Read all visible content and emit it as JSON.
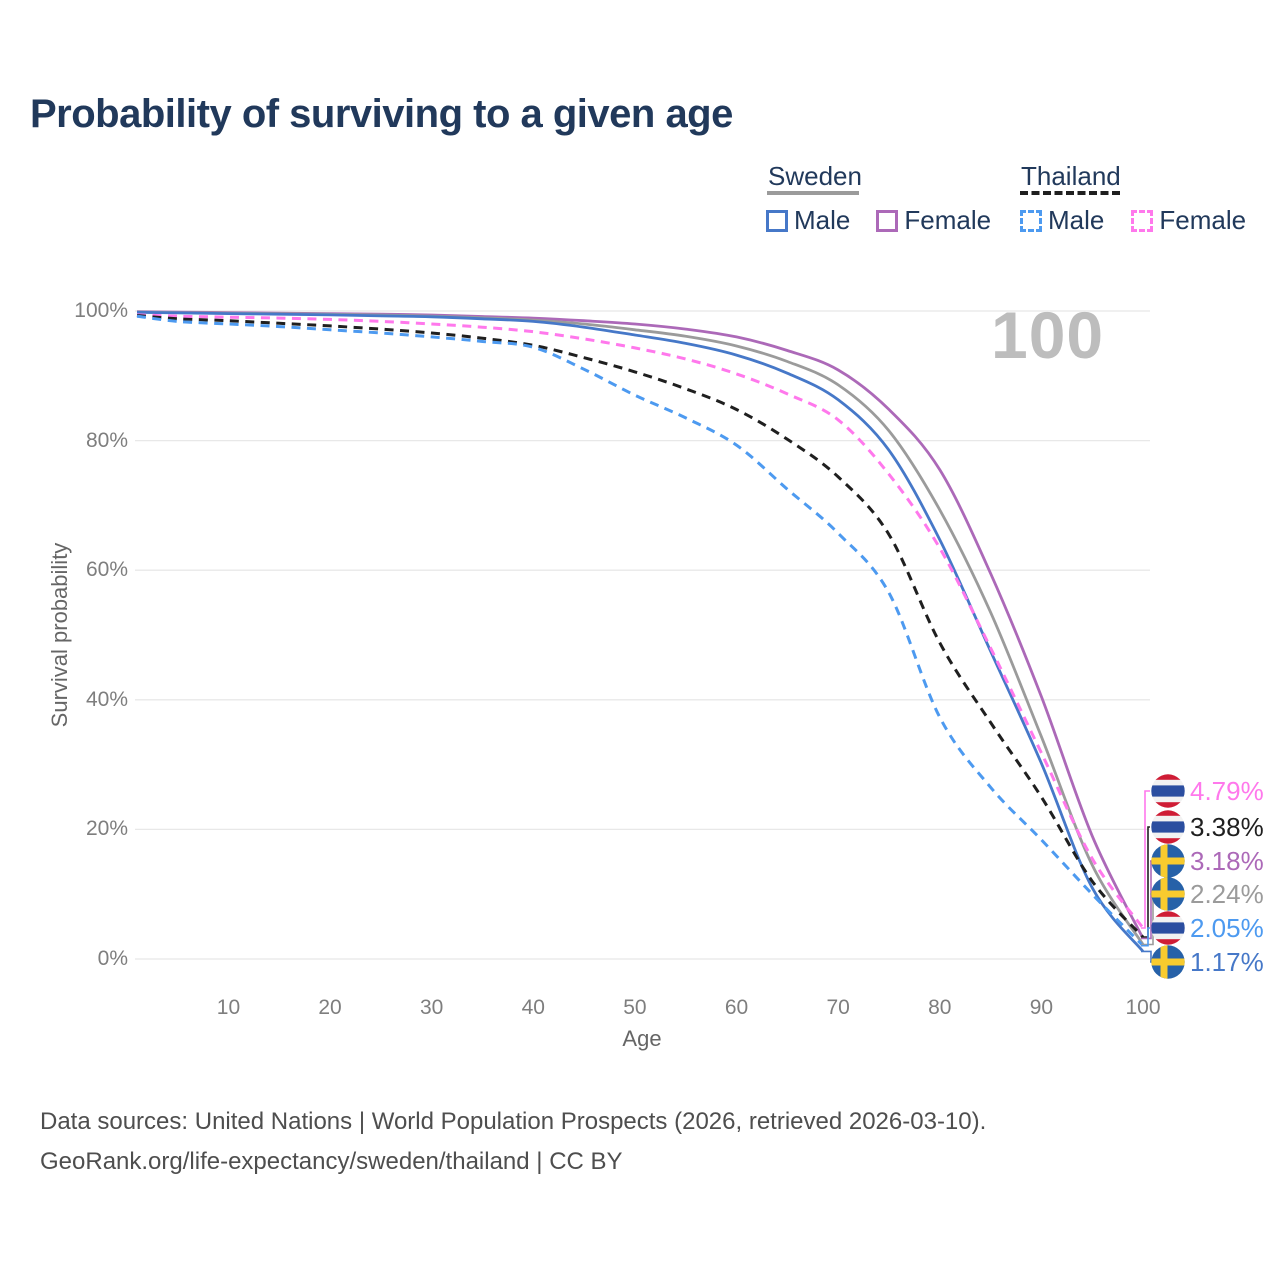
{
  "title": "Probability of surviving to a given age",
  "watermark": "100",
  "legend": {
    "groups": [
      {
        "country": "Sweden",
        "line_style": "solid",
        "underline_color": "#9B9B9B",
        "items": [
          {
            "label": "Male",
            "color": "#4678C8"
          },
          {
            "label": "Female",
            "color": "#AC69B8"
          }
        ]
      },
      {
        "country": "Thailand",
        "line_style": "dashed",
        "underline_color": "#1F1F1F",
        "items": [
          {
            "label": "Male",
            "color": "#4D9AF0"
          },
          {
            "label": "Female",
            "color": "#FF78EC"
          }
        ]
      }
    ]
  },
  "axes": {
    "y_label": "Survival probability",
    "x_label": "Age",
    "y_ticks": [
      "0%",
      "20%",
      "40%",
      "60%",
      "80%",
      "100%"
    ],
    "x_ticks": [
      "10",
      "20",
      "30",
      "40",
      "50",
      "60",
      "70",
      "80",
      "90",
      "100"
    ]
  },
  "chart_data": {
    "type": "line",
    "title": "Probability of surviving to a given age",
    "xlabel": "Age",
    "ylabel": "Survival probability",
    "xlim": [
      0,
      100
    ],
    "ylim": [
      0,
      100
    ],
    "grid": "horizontal",
    "legend_position": "top-right",
    "x": [
      1,
      5,
      10,
      15,
      20,
      25,
      30,
      35,
      40,
      45,
      50,
      55,
      60,
      65,
      70,
      75,
      80,
      85,
      90,
      95,
      100
    ],
    "series": [
      {
        "id": "sweden-female",
        "name": "Sweden Female",
        "color": "#AC69B8",
        "dashed": false,
        "values": [
          99.9,
          99.82,
          99.76,
          99.68,
          99.6,
          99.5,
          99.38,
          99.15,
          98.9,
          98.5,
          98.0,
          97.2,
          96.0,
          93.9,
          90.9,
          84.8,
          75.5,
          59.5,
          40.5,
          19.0,
          3.18
        ]
      },
      {
        "id": "sweden-both",
        "name": "Sweden (both sexes)",
        "color": "#9B9B9B",
        "dashed": false,
        "values": [
          99.85,
          99.75,
          99.68,
          99.58,
          99.5,
          99.38,
          99.2,
          98.95,
          98.6,
          98.0,
          97.1,
          96.1,
          94.6,
          92.2,
          88.6,
          81.5,
          69.3,
          53.5,
          34.3,
          14.5,
          2.24
        ]
      },
      {
        "id": "sweden-male",
        "name": "Sweden Male",
        "color": "#4678C8",
        "dashed": false,
        "values": [
          99.8,
          99.7,
          99.6,
          99.5,
          99.4,
          99.25,
          99.1,
          98.8,
          98.4,
          97.5,
          96.3,
          95.0,
          93.2,
          90.4,
          86.3,
          78.5,
          64.7,
          47.5,
          30.2,
          11.0,
          1.17
        ]
      },
      {
        "id": "thailand-female",
        "name": "Thailand Female",
        "color": "#FF78EC",
        "dashed": true,
        "values": [
          99.4,
          99.2,
          99.05,
          98.9,
          98.7,
          98.4,
          98.0,
          97.5,
          96.8,
          95.7,
          94.3,
          92.6,
          90.3,
          87.2,
          83.2,
          74.8,
          63.4,
          48.0,
          31.8,
          15.5,
          4.79
        ]
      },
      {
        "id": "thailand-both",
        "name": "Thailand (both sexes)",
        "color": "#1F1F1F",
        "dashed": true,
        "values": [
          99.3,
          98.8,
          98.5,
          98.1,
          97.7,
          97.2,
          96.6,
          95.8,
          94.7,
          92.8,
          90.6,
          88.0,
          84.8,
          80.2,
          74.4,
          65.5,
          48.8,
          36.5,
          25.0,
          12.0,
          3.38
        ]
      },
      {
        "id": "thailand-male",
        "name": "Thailand Male",
        "color": "#4D9AF0",
        "dashed": true,
        "values": [
          99.2,
          98.4,
          98.0,
          97.6,
          97.1,
          96.6,
          96.0,
          95.3,
          94.4,
          91.0,
          87.0,
          83.5,
          79.3,
          72.5,
          65.7,
          56.5,
          37.3,
          26.5,
          18.4,
          10.0,
          2.05
        ]
      }
    ],
    "end_labels": [
      {
        "series": "thailand-female",
        "value": "4.79%",
        "flag": "thailand",
        "color": "#FF78EC"
      },
      {
        "series": "thailand-both",
        "value": "3.38%",
        "flag": "thailand",
        "color": "#1F1F1F"
      },
      {
        "series": "sweden-female",
        "value": "3.18%",
        "flag": "sweden",
        "color": "#AC69B8"
      },
      {
        "series": "sweden-both",
        "value": "2.24%",
        "flag": "sweden",
        "color": "#9B9B9B"
      },
      {
        "series": "thailand-male",
        "value": "2.05%",
        "flag": "thailand",
        "color": "#4D9AF0"
      },
      {
        "series": "sweden-male",
        "value": "1.17%",
        "flag": "sweden",
        "color": "#4678C8"
      }
    ]
  },
  "footer": {
    "line1": "Data sources: United Nations | World Population Prospects (2026, retrieved 2026-03-10).",
    "line2": "GeoRank.org/life-expectancy/sweden/thailand | CC BY"
  }
}
